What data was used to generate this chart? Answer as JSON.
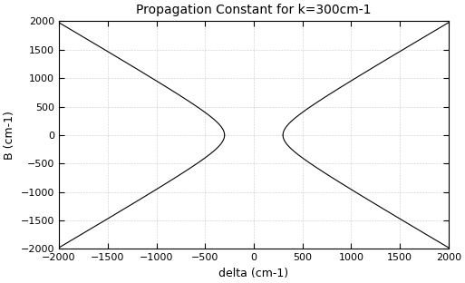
{
  "title": "Propagation Constant for k=300cm-1",
  "xlabel": "delta (cm-1)",
  "ylabel": "B (cm-1)",
  "k": 300,
  "delta_min": -2000,
  "delta_max": 2000,
  "B_min": -2000,
  "B_max": 2000,
  "xticks": [
    -2000,
    -1500,
    -1000,
    -500,
    0,
    500,
    1000,
    1500,
    2000
  ],
  "yticks": [
    -2000,
    -1500,
    -1000,
    -500,
    0,
    500,
    1000,
    1500,
    2000
  ],
  "line_color": "#000000",
  "bg_color": "#ffffff",
  "figsize": [
    5.13,
    3.12
  ],
  "dpi": 100
}
